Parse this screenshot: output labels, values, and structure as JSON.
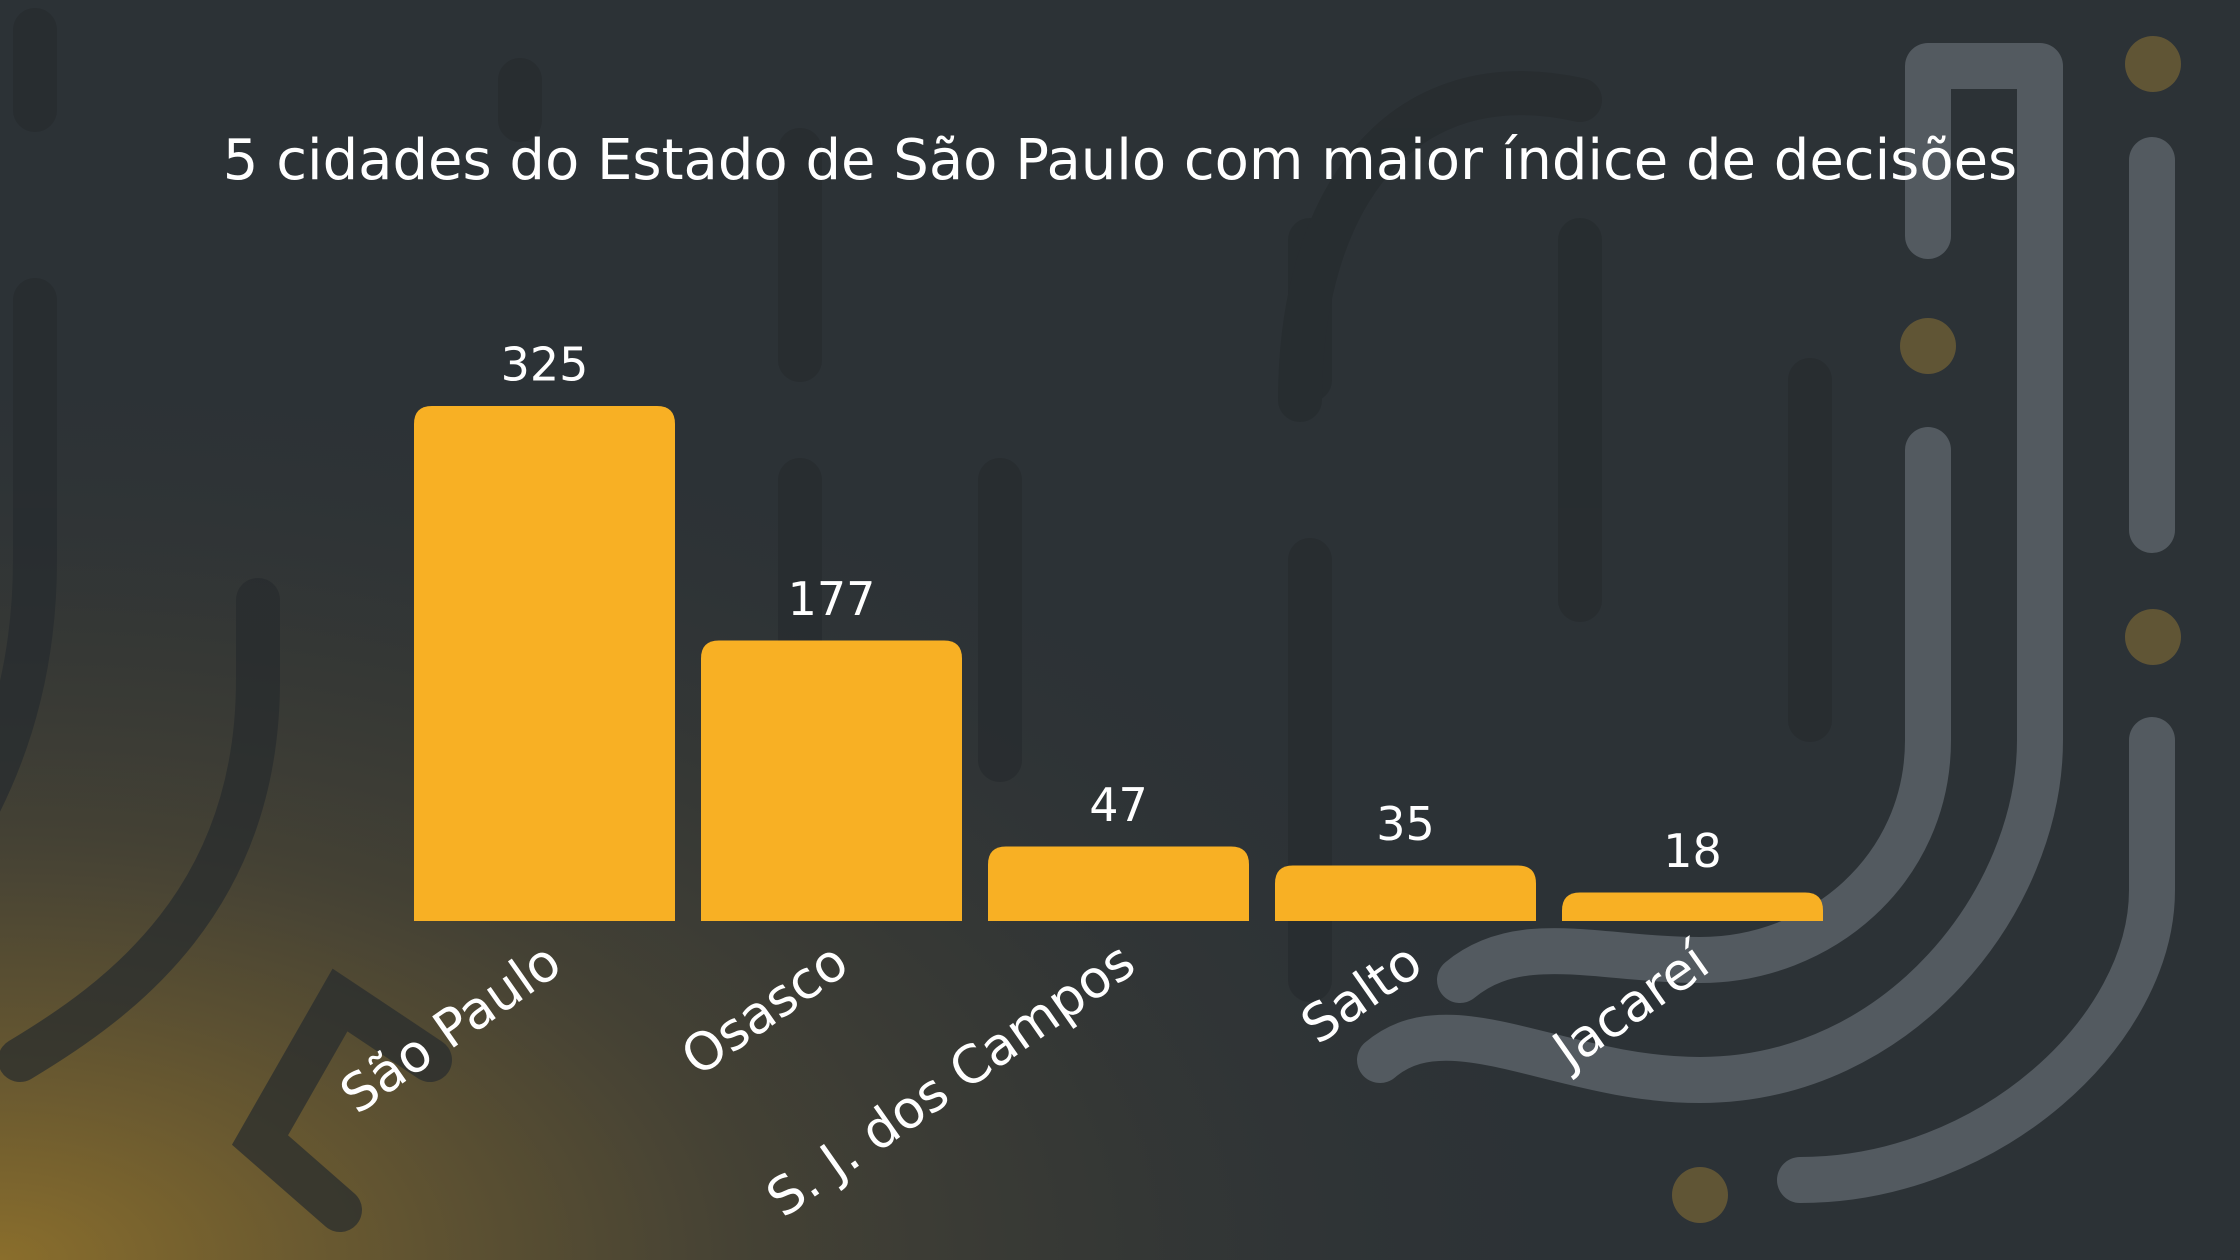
{
  "chart_data": {
    "type": "bar",
    "title": "5 cidades do Estado de São Paulo com maior índice de decisões",
    "categories": [
      "São Paulo",
      "Osasco",
      "S. J. dos Campos",
      "Salto",
      "Jacareí"
    ],
    "values": [
      325,
      177,
      47,
      35,
      18
    ],
    "color": "#f8b024"
  }
}
